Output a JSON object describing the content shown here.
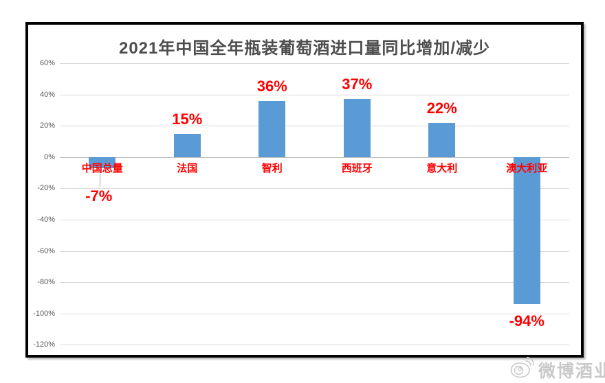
{
  "watermark": {
    "icon": "weibo-icon",
    "text": "微博酒业",
    "color": "#c9c9c9"
  },
  "chart_data": {
    "type": "bar",
    "title": "2021年中国全年瓶装葡萄酒进口量同比增加/减少",
    "categories": [
      "中国总量",
      "法国",
      "智利",
      "西班牙",
      "意大利",
      "澳大利亚"
    ],
    "values": [
      -7,
      15,
      36,
      37,
      22,
      -94
    ],
    "data_labels": [
      "-7%",
      "15%",
      "36%",
      "37%",
      "22%",
      "-94%"
    ],
    "label_placements": [
      "callout",
      "above",
      "above",
      "above",
      "above",
      "below"
    ],
    "xlabel": "",
    "ylabel": "",
    "ylim": [
      -120,
      60
    ],
    "ytick_step": 20,
    "yticks": [
      "60%",
      "40%",
      "20%",
      "0%",
      "-20%",
      "-40%",
      "-60%",
      "-80%",
      "-100%",
      "-120%"
    ],
    "grid": true,
    "legend": false,
    "colors": {
      "bar": "#5b9bd5",
      "data_label": "#ff0000",
      "category_label": "#ff0000",
      "title": "#4d4d4d",
      "axis_text": "#595959",
      "gridline": "#d9d9d9",
      "zero_line": "#bfbfbf",
      "frame_border": "#000000",
      "background": "#ffffff"
    }
  }
}
